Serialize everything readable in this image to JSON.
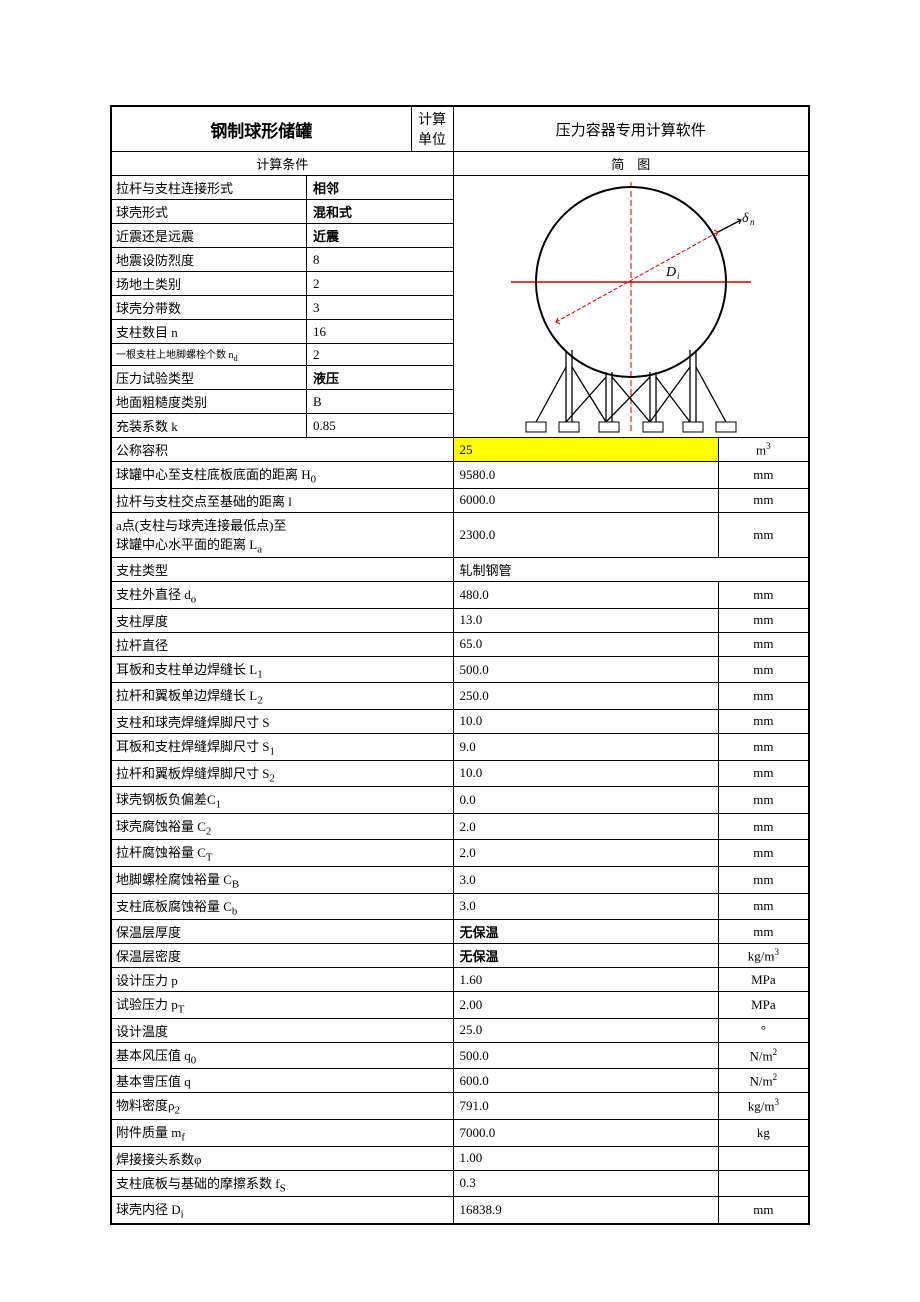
{
  "header": {
    "title": "钢制球形储罐",
    "calc_unit": "计算单位",
    "software": "压力容器专用计算软件"
  },
  "sections": {
    "conditions": "计算条件",
    "diagram": "简　图"
  },
  "conditions": {
    "rod_pillar_conn": {
      "label": "拉杆与支柱连接形式",
      "value": "相邻"
    },
    "shell_form": {
      "label": "球壳形式",
      "value": "混和式"
    },
    "near_far": {
      "label": "近震还是远震",
      "value": "近震"
    },
    "quake_intensity": {
      "label": "地震设防烈度",
      "value": "8"
    },
    "soil_type": {
      "label": "场地土类别",
      "value": "2"
    },
    "shell_bands": {
      "label": "球壳分带数",
      "value": "3"
    },
    "pillar_count": {
      "label": "支柱数目 n",
      "value": "16"
    },
    "anchor_bolts": {
      "label": "一根支柱上地脚螺栓个数 n",
      "sub": "d",
      "value": "2"
    },
    "pressure_test": {
      "label": "压力试验类型",
      "value": "液压"
    },
    "roughness": {
      "label": "地面粗糙度类别",
      "value": "B"
    },
    "fill_coef": {
      "label": "充装系数 k",
      "value": "0.85"
    }
  },
  "full_rows": [
    {
      "label": "公称容积",
      "sub": "",
      "value": "25",
      "unit": "m",
      "sup": "3",
      "highlight": true
    },
    {
      "label": "球罐中心至支柱底板底面的距离 H",
      "sub": "0",
      "value": "9580.0",
      "unit": "mm"
    },
    {
      "label": "拉杆与支柱交点至基础的距离 l",
      "value": "6000.0",
      "unit": "mm"
    },
    {
      "label": "a点(支柱与球壳连接最低点)至\n球罐中心水平面的距离 L",
      "sub": "a",
      "value": "2300.0",
      "unit": "mm",
      "tall": true
    },
    {
      "label": "支柱类型",
      "value": "轧制钢管",
      "unit": "",
      "nounit": true
    },
    {
      "label": "支柱外直径 d",
      "sub": "o",
      "value": "480.0",
      "unit": "mm"
    },
    {
      "label": "支柱厚度",
      "value": "13.0",
      "unit": "mm"
    },
    {
      "label": "拉杆直径",
      "value": "65.0",
      "unit": "mm"
    },
    {
      "label": "耳板和支柱单边焊缝长 L",
      "sub": "1",
      "value": "500.0",
      "unit": "mm"
    },
    {
      "label": "拉杆和翼板单边焊缝长 L",
      "sub": "2",
      "value": "250.0",
      "unit": "mm"
    },
    {
      "label": "支柱和球壳焊缝焊脚尺寸 S",
      "value": "10.0",
      "unit": "mm"
    },
    {
      "label": "耳板和支柱焊缝焊脚尺寸 S",
      "sub": "1",
      "value": "9.0",
      "unit": "mm"
    },
    {
      "label": "拉杆和翼板焊缝焊脚尺寸 S",
      "sub": "2",
      "value": "10.0",
      "unit": "mm"
    },
    {
      "label": "球壳钢板负偏差C",
      "sub": "1",
      "value": "0.0",
      "unit": "mm"
    },
    {
      "label": "球壳腐蚀裕量 C",
      "sub": "2",
      "value": "2.0",
      "unit": "mm"
    },
    {
      "label": "拉杆腐蚀裕量 C",
      "sub": "T",
      "value": "2.0",
      "unit": "mm"
    },
    {
      "label": "地脚螺栓腐蚀裕量 C",
      "sub": "B",
      "value": "3.0",
      "unit": "mm"
    },
    {
      "label": "支柱底板腐蚀裕量 C",
      "sub": "b",
      "value": "3.0",
      "unit": "mm"
    },
    {
      "label": "保温层厚度",
      "value": "无保温",
      "unit": "mm",
      "boldval": true
    },
    {
      "label": "保温层密度",
      "value": "无保温",
      "unit": "kg/m",
      "sup": "3",
      "boldval": true
    },
    {
      "label": "设计压力 p",
      "value": "1.60",
      "unit": "MPa"
    },
    {
      "label": "试验压力 p",
      "sub": "T",
      "value": "2.00",
      "unit": "MPa"
    },
    {
      "label": "设计温度",
      "value": "25.0",
      "unit": "°"
    },
    {
      "label": "基本风压值 q",
      "sub": "0",
      "value": "500.0",
      "unit": "N/m",
      "sup": "2"
    },
    {
      "label": "基本雪压值 q",
      "value": "600.0",
      "unit": "N/m",
      "sup": "2"
    },
    {
      "label": "物料密度ρ",
      "sub": "2",
      "value": "791.0",
      "unit": "kg/m",
      "sup": "3"
    },
    {
      "label": "附件质量 m",
      "sub": "f",
      "value": "7000.0",
      "unit": "kg"
    },
    {
      "label": "焊接接头系数φ",
      "value": "1.00",
      "unit": ""
    },
    {
      "label": "支柱底板与基础的摩擦系数 f",
      "sub": "S",
      "value": "0.3",
      "unit": ""
    },
    {
      "label": "球壳内径 D",
      "sub": "i",
      "value": "16838.9",
      "unit": "mm"
    }
  ],
  "diagram": {
    "Di": "Dᵢ",
    "delta": "δₙ"
  }
}
